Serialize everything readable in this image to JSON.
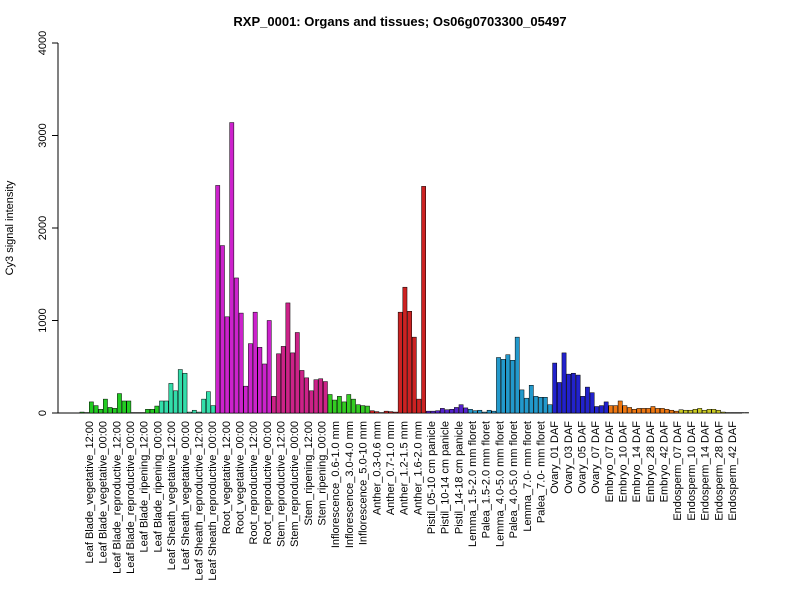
{
  "chart_data": {
    "type": "bar",
    "title": "RXP_0001: Organs and tissues; Os06g0703300_05497",
    "xlabel": "",
    "ylabel": "Cy3 signal intensity",
    "ylim": [
      0,
      4000
    ],
    "yticks": [
      0,
      1000,
      2000,
      3000,
      4000
    ],
    "grid": false,
    "categories": [
      "Leaf Blade_vegetative_12:00",
      "Leaf Blade_vegetative_00:00",
      "Leaf Blade_reproductive_12:00",
      "Leaf Blade_reproductive_00:00",
      "Leaf Blade_ripening_12:00",
      "Leaf Blade_ripening_00:00",
      "Leaf Sheath_vegetative_12:00",
      "Leaf Sheath_vegetative_00:00",
      "Leaf Sheath_reproductive_12:00",
      "Leaf Sheath_reproductive_00:00",
      "Root_vegetative_12:00",
      "Root_vegetative_00:00",
      "Root_reproductive_12:00",
      "Root_reproductive_00:00",
      "Stem_reproductive_12:00",
      "Stem_reproductive_00:00",
      "Stem_ripening_12:00",
      "Stem_ripening_00:00",
      "Inflorescence_0.6-1.0 mm",
      "Inflorescence_3.0-4.0 mm",
      "Inflorescence_5.0-10 mm",
      "Anther_0.3-0.6 mm",
      "Anther_0.7-1.0 mm",
      "Anther_1.2-1.5 mm",
      "Anther_1.6-2.0 mm",
      "Pistil_05-10 cm panicle",
      "Pistil_10-14 cm panicle",
      "Pistil_14-18 cm panicle",
      "Lemma_1.5-2.0 mm floret",
      "Palea_1.5-2.0 mm floret",
      "Lemma_4.0-5.0 mm floret",
      "Palea_4.0-5.0 mm floret",
      "Lemma_7.0- mm floret",
      "Palea_7.0- mm floret",
      "Ovary_01 DAF",
      "Ovary_03 DAF",
      "Ovary_05 DAF",
      "Ovary_07 DAF",
      "Embryo_07 DAF",
      "Embryo_10 DAF",
      "Embryo_14 DAF",
      "Embryo_28 DAF",
      "Embryo_42 DAF",
      "Endosperm_07 DAF",
      "Endosperm_10 DAF",
      "Endosperm_14 DAF",
      "Endosperm_28 DAF",
      "Endosperm_42 DAF"
    ],
    "groups": [
      {
        "color": "#22cc22",
        "values": [
          10,
          5
        ]
      },
      {
        "color": "#22cc22",
        "values": [
          120,
          80,
          40
        ]
      },
      {
        "color": "#22cc22",
        "values": [
          150,
          60,
          50
        ]
      },
      {
        "color": "#22cc22",
        "values": [
          210,
          130,
          130
        ]
      },
      {
        "color": "#22cc22",
        "values": [
          5,
          5,
          5
        ]
      },
      {
        "color": "#22cc22",
        "values": [
          40,
          40,
          75
        ]
      },
      {
        "color": "#33ddaa",
        "values": [
          130,
          130,
          320
        ]
      },
      {
        "color": "#33ddaa",
        "values": [
          240,
          470,
          430
        ]
      },
      {
        "color": "#33ddaa",
        "values": [
          10,
          30,
          10
        ]
      },
      {
        "color": "#33ddaa",
        "values": [
          150,
          230,
          80
        ]
      },
      {
        "color": "#cc22cc",
        "values": [
          2460,
          1810,
          1040
        ]
      },
      {
        "color": "#cc22cc",
        "values": [
          3140,
          1460,
          1080
        ]
      },
      {
        "color": "#cc22cc",
        "values": [
          290,
          750,
          1090
        ]
      },
      {
        "color": "#cc22cc",
        "values": [
          710,
          530,
          1000
        ]
      },
      {
        "color": "#cc2288",
        "values": [
          180,
          640,
          720
        ]
      },
      {
        "color": "#cc2288",
        "values": [
          1190,
          650,
          870
        ]
      },
      {
        "color": "#cc2288",
        "values": [
          460,
          380,
          240
        ]
      },
      {
        "color": "#cc2288",
        "values": [
          360,
          370,
          340
        ]
      },
      {
        "color": "#33cc22",
        "values": [
          200,
          140,
          180
        ]
      },
      {
        "color": "#33cc22",
        "values": [
          120,
          200,
          150
        ]
      },
      {
        "color": "#33cc22",
        "values": [
          90,
          80,
          75
        ]
      },
      {
        "color": "#cc2222",
        "values": [
          25,
          15,
          5
        ]
      },
      {
        "color": "#cc2222",
        "values": [
          20,
          15,
          10
        ]
      },
      {
        "color": "#cc2222",
        "values": [
          1090,
          1360,
          1100
        ]
      },
      {
        "color": "#cc2222",
        "values": [
          820,
          150,
          2450
        ]
      },
      {
        "color": "#5522cc",
        "values": [
          20,
          20,
          25
        ]
      },
      {
        "color": "#5522cc",
        "values": [
          50,
          35,
          40
        ]
      },
      {
        "color": "#5522cc",
        "values": [
          60,
          90,
          55
        ]
      },
      {
        "color": "#2299cc",
        "values": [
          40,
          25,
          30
        ]
      },
      {
        "color": "#2299cc",
        "values": [
          10,
          30,
          20
        ]
      },
      {
        "color": "#2299cc",
        "values": [
          600,
          580,
          630
        ]
      },
      {
        "color": "#2299cc",
        "values": [
          570,
          820,
          250
        ]
      },
      {
        "color": "#2299cc",
        "values": [
          160,
          300,
          180
        ]
      },
      {
        "color": "#2299cc",
        "values": [
          170,
          170,
          90
        ]
      },
      {
        "color": "#2222cc",
        "values": [
          540,
          330,
          650
        ]
      },
      {
        "color": "#2222cc",
        "values": [
          420,
          430,
          410
        ]
      },
      {
        "color": "#2222cc",
        "values": [
          180,
          280,
          220
        ]
      },
      {
        "color": "#2222cc",
        "values": [
          70,
          80,
          120
        ]
      },
      {
        "color": "#ee7711",
        "values": [
          80,
          80,
          130
        ]
      },
      {
        "color": "#ee7711",
        "values": [
          80,
          60,
          40
        ]
      },
      {
        "color": "#ee7711",
        "values": [
          50,
          50,
          50
        ]
      },
      {
        "color": "#ee7711",
        "values": [
          70,
          50,
          50
        ]
      },
      {
        "color": "#ee7711",
        "values": [
          40,
          30,
          20
        ]
      },
      {
        "color": "#cccc22",
        "values": [
          35,
          30,
          30
        ]
      },
      {
        "color": "#cccc22",
        "values": [
          40,
          50,
          30
        ]
      },
      {
        "color": "#cccc22",
        "values": [
          40,
          40,
          30
        ]
      },
      {
        "color": "#cccc22",
        "values": [
          10,
          5,
          5
        ]
      },
      {
        "color": "#cccc22",
        "values": [
          5,
          5,
          5
        ]
      }
    ]
  }
}
